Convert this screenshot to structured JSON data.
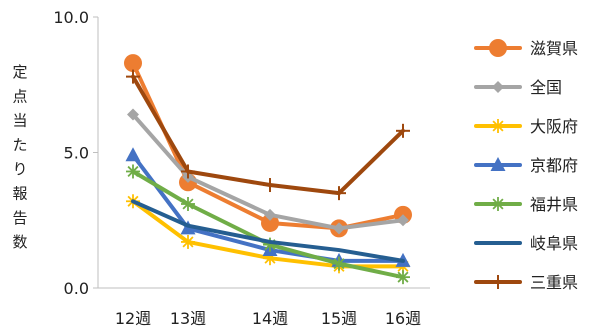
{
  "chart_data": {
    "type": "line",
    "title": "",
    "xlabel": "",
    "ylabel": "定点当たり報告数",
    "categories": [
      "12週",
      "13週",
      "14週",
      "15週",
      "16週"
    ],
    "ylim": [
      0,
      10
    ],
    "yticks": [
      0,
      5,
      10
    ],
    "ytick_labels": [
      "0.0",
      "5.0",
      "10.0"
    ],
    "grid": false,
    "legend_position": "right",
    "series": [
      {
        "name": "滋賀県",
        "color": "#ED7D31",
        "marker": "circle",
        "values": [
          8.3,
          3.9,
          2.4,
          2.2,
          2.7
        ]
      },
      {
        "name": "全国",
        "color": "#A5A5A5",
        "marker": "diamond",
        "values": [
          6.4,
          4.1,
          2.7,
          2.2,
          2.5
        ]
      },
      {
        "name": "大阪府",
        "color": "#FFC000",
        "marker": "asterisk",
        "values": [
          3.2,
          1.7,
          1.1,
          0.8,
          0.8
        ]
      },
      {
        "name": "京都府",
        "color": "#4472C4",
        "marker": "triangle",
        "values": [
          4.9,
          2.2,
          1.4,
          1.0,
          1.0
        ]
      },
      {
        "name": "福井県",
        "color": "#70AD47",
        "marker": "asterisk",
        "values": [
          4.3,
          3.1,
          1.6,
          0.9,
          0.4
        ]
      },
      {
        "name": "岐阜県",
        "color": "#255E91",
        "marker": "none",
        "values": [
          3.2,
          2.3,
          1.7,
          1.4,
          1.0
        ]
      },
      {
        "name": "三重県",
        "color": "#9E480E",
        "marker": "plus",
        "values": [
          7.8,
          4.3,
          3.8,
          3.5,
          5.8
        ]
      }
    ]
  }
}
